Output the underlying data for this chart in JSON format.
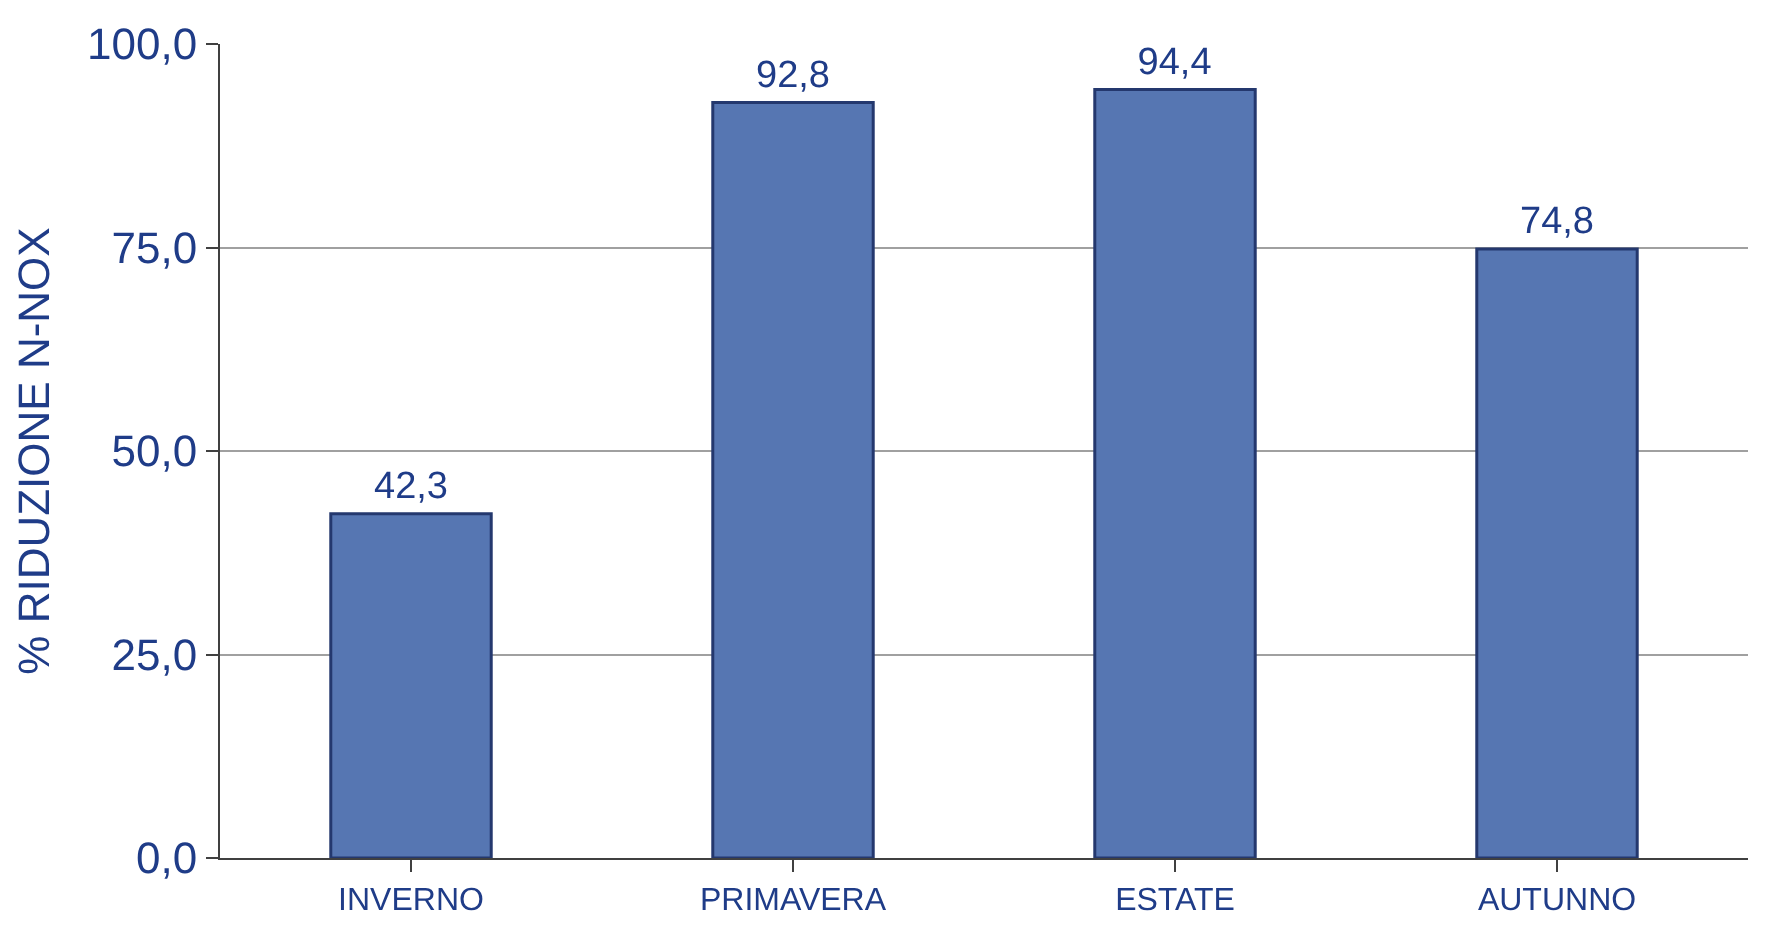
{
  "chart_data": {
    "type": "bar",
    "ylabel": "% RIDUZIONE N-NOX",
    "categories": [
      "INVERNO",
      "PRIMAVERA",
      "ESTATE",
      "AUTUNNO"
    ],
    "values": [
      42.3,
      92.8,
      94.4,
      74.8
    ],
    "value_labels": [
      "42,3",
      "92,8",
      "94,4",
      "74,8"
    ],
    "color": "#5676b2",
    "ylim": [
      0,
      100
    ],
    "yticks": [
      {
        "value": 0,
        "label": "0,0"
      },
      {
        "value": 25,
        "label": "25,0"
      },
      {
        "value": 50,
        "label": "50,0"
      },
      {
        "value": 75,
        "label": "75,0"
      },
      {
        "value": 100,
        "label": "100,0"
      }
    ],
    "grid": "y"
  }
}
